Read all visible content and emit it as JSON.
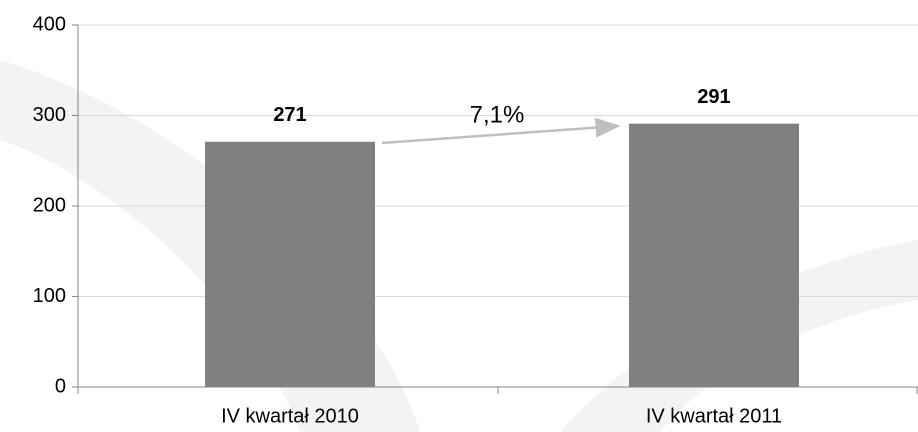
{
  "chart_data": {
    "type": "bar",
    "categories": [
      "IV kwartał 2010",
      "IV kwartał 2011"
    ],
    "values": [
      271,
      291
    ],
    "color": "#808080",
    "ylim": [
      0,
      400
    ],
    "yticks": [
      0,
      100,
      200,
      300,
      400
    ],
    "grid": true,
    "annotation": "7,1%"
  }
}
